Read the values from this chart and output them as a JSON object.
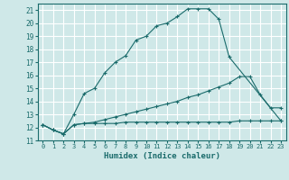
{
  "title": "",
  "xlabel": "Humidex (Indice chaleur)",
  "ylabel": "",
  "bg_color": "#cfe8e8",
  "line_color": "#1a6b6b",
  "grid_color": "#ffffff",
  "xlim": [
    -0.5,
    23.5
  ],
  "ylim": [
    11,
    21.5
  ],
  "xticks": [
    0,
    1,
    2,
    3,
    4,
    5,
    6,
    7,
    8,
    9,
    10,
    11,
    12,
    13,
    14,
    15,
    16,
    17,
    18,
    19,
    20,
    21,
    22,
    23
  ],
  "yticks": [
    11,
    12,
    13,
    14,
    15,
    16,
    17,
    18,
    19,
    20,
    21
  ],
  "series": [
    {
      "x": [
        0,
        1,
        2,
        3,
        4,
        5,
        6,
        7,
        8,
        9,
        10,
        11,
        12,
        13,
        14,
        15,
        16,
        17,
        18,
        23
      ],
      "y": [
        12.2,
        11.8,
        11.5,
        13.0,
        14.6,
        15.0,
        16.2,
        17.0,
        17.5,
        18.7,
        19.0,
        19.8,
        20.0,
        20.5,
        21.1,
        21.1,
        21.1,
        20.3,
        17.4,
        12.5
      ]
    },
    {
      "x": [
        0,
        1,
        2,
        3,
        4,
        5,
        6,
        7,
        8,
        9,
        10,
        11,
        12,
        13,
        14,
        15,
        16,
        17,
        18,
        19,
        20,
        21,
        22,
        23
      ],
      "y": [
        12.2,
        11.8,
        11.5,
        12.2,
        12.3,
        12.4,
        12.6,
        12.8,
        13.0,
        13.2,
        13.4,
        13.6,
        13.8,
        14.0,
        14.3,
        14.5,
        14.8,
        15.1,
        15.4,
        15.9,
        15.9,
        14.5,
        13.5,
        13.5
      ]
    },
    {
      "x": [
        0,
        1,
        2,
        3,
        4,
        5,
        6,
        7,
        8,
        9,
        10,
        11,
        12,
        13,
        14,
        15,
        16,
        17,
        18,
        19,
        20,
        21,
        22,
        23
      ],
      "y": [
        12.2,
        11.8,
        11.5,
        12.2,
        12.3,
        12.3,
        12.3,
        12.3,
        12.4,
        12.4,
        12.4,
        12.4,
        12.4,
        12.4,
        12.4,
        12.4,
        12.4,
        12.4,
        12.4,
        12.5,
        12.5,
        12.5,
        12.5,
        12.5
      ]
    }
  ]
}
